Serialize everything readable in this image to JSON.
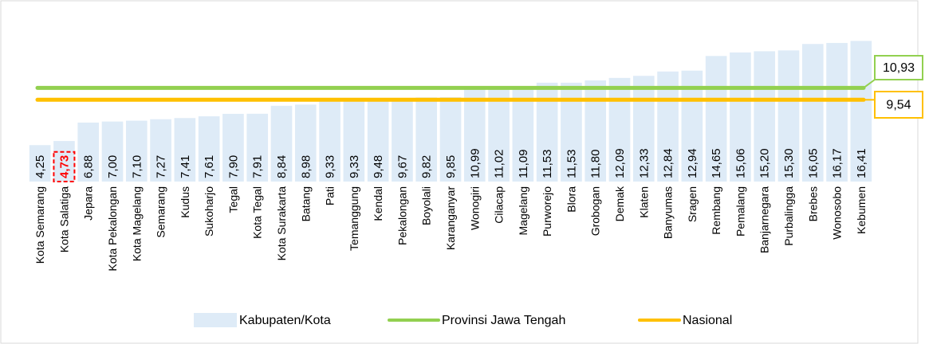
{
  "chart_data": {
    "type": "bar",
    "categories": [
      "Kota Semarang",
      "Kota Salatiga",
      "Jepara",
      "Kota Pekalongan",
      "Kota Magelang",
      "Semarang",
      "Kudus",
      "Sukoharjo",
      "Tegal",
      "Kota Tegal",
      "Kota Surakarta",
      "Batang",
      "Pati",
      "Temanggung",
      "Kendal",
      "Pekalongan",
      "Boyolali",
      "Karanganyar",
      "Wonogiri",
      "Cilacap",
      "Magelang",
      "Purworejo",
      "Blora",
      "Grobogan",
      "Demak",
      "Klaten",
      "Banyumas",
      "Sragen",
      "Rembang",
      "Pemalang",
      "Banjarnegara",
      "Purbalingga",
      "Brebes",
      "Wonosobo",
      "Kebumen"
    ],
    "values": [
      4.25,
      4.73,
      6.88,
      7.0,
      7.1,
      7.27,
      7.41,
      7.61,
      7.9,
      7.91,
      8.84,
      8.98,
      9.33,
      9.33,
      9.48,
      9.67,
      9.82,
      9.85,
      10.99,
      11.02,
      11.09,
      11.53,
      11.53,
      11.8,
      12.09,
      12.33,
      12.84,
      12.94,
      14.65,
      15.06,
      15.2,
      15.3,
      16.05,
      16.17,
      16.41
    ],
    "value_labels": [
      "4,25",
      "4,73",
      "6,88",
      "7,00",
      "7,10",
      "7,27",
      "7,41",
      "7,61",
      "7,90",
      "7,91",
      "8,84",
      "8,98",
      "9,33",
      "9,33",
      "9,48",
      "9,67",
      "9,82",
      "9,85",
      "10,99",
      "11,02",
      "11,09",
      "11,53",
      "11,53",
      "11,80",
      "12,09",
      "12,33",
      "12,84",
      "12,94",
      "14,65",
      "15,06",
      "15,20",
      "15,30",
      "16,05",
      "16,17",
      "16,41"
    ],
    "name": "Kabupaten/Kota",
    "color": "#deebf7",
    "highlight": 1,
    "highlight_color": "#ff0000",
    "reference_lines": [
      {
        "name": "Provinsi Jawa Tengah",
        "color": "#92d050",
        "value": 10.93,
        "value_label": "10,93"
      },
      {
        "name": "Nasional",
        "color": "#ffc000",
        "value": 9.54,
        "value_label": "9,54"
      }
    ],
    "ylim": [
      0,
      17
    ]
  }
}
